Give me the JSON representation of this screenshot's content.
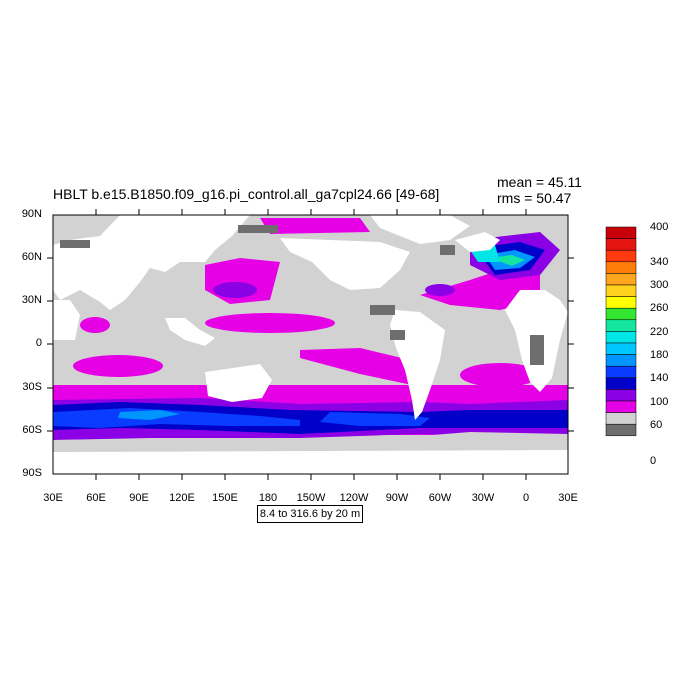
{
  "title": "HBLT b.e15.B1850.f09_g16.pi_control.all_ga7cpl24.66 [49-68]",
  "stats": {
    "mean": "mean = 45.11",
    "rms": "rms = 50.47"
  },
  "lat_labels": [
    "90N",
    "60N",
    "30N",
    "0",
    "30S",
    "60S",
    "90S"
  ],
  "lon_labels": [
    "30E",
    "60E",
    "90E",
    "120E",
    "150E",
    "180",
    "150W",
    "120W",
    "90W",
    "60W",
    "30W",
    "0",
    "30E"
  ],
  "contour_info": "8.4 to 316.6 by 20 m",
  "colorbar": {
    "labels": [
      "400",
      "340",
      "300",
      "260",
      "220",
      "180",
      "140",
      "100",
      "60",
      "0"
    ],
    "colors": [
      "#c8000a",
      "#e5150f",
      "#ff3a0f",
      "#ff7d0a",
      "#ffa51e",
      "#ffd21e",
      "#ffff00",
      "#32e632",
      "#14e6a0",
      "#00e6e6",
      "#00c8ff",
      "#0096ff",
      "#0a3cff",
      "#0000c8",
      "#8c00e6",
      "#e600e6",
      "#d2d2d2",
      "#6e6e6e"
    ]
  },
  "map_colors": {
    "land": "#ffffff",
    "low": "#d2d2d2",
    "zero": "#6e6e6e",
    "mid": "#e600e6",
    "purple": "#8c00e6",
    "blue": "#0000c8",
    "mblue": "#0a3cff",
    "lblue": "#0096ff"
  }
}
